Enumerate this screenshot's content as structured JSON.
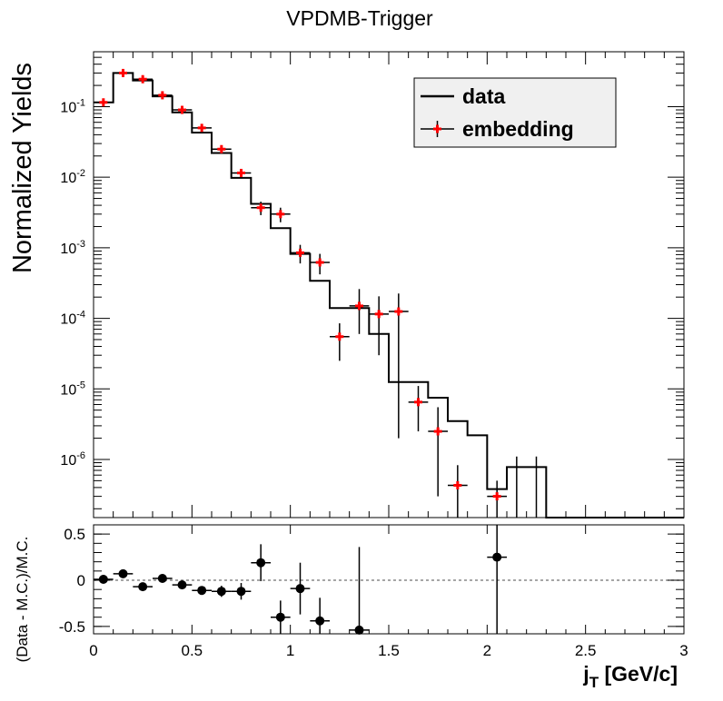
{
  "title": "VPDMB-Trigger",
  "chart_data": [
    {
      "type": "line",
      "panel": "main",
      "ylabel": "Normalized Yields",
      "yscale": "log",
      "xlim": [
        0,
        3
      ],
      "ylim": [
        1.5e-07,
        0.6
      ],
      "y_ticks": [
        {
          "value": 0.1,
          "base": "10",
          "exp": "-1"
        },
        {
          "value": 0.01,
          "base": "10",
          "exp": "-2"
        },
        {
          "value": 0.001,
          "base": "10",
          "exp": "-3"
        },
        {
          "value": 0.0001,
          "base": "10",
          "exp": "-4"
        },
        {
          "value": 1e-05,
          "base": "10",
          "exp": "-5"
        },
        {
          "value": 1e-06,
          "base": "10",
          "exp": "-6"
        }
      ],
      "legend": {
        "placement": "top-right",
        "entries": [
          {
            "label": "data",
            "style": "histogram-step",
            "color": "#000000"
          },
          {
            "label": "embedding",
            "style": "markers-errorbars",
            "color": "#ff0000"
          }
        ]
      },
      "series": [
        {
          "name": "data",
          "style": "step",
          "color": "#000000",
          "bin_edges": [
            0,
            0.1,
            0.2,
            0.3,
            0.4,
            0.5,
            0.6,
            0.7,
            0.8,
            0.9,
            1.0,
            1.1,
            1.2,
            1.3,
            1.4,
            1.5,
            1.6,
            1.7,
            1.8,
            1.9,
            2.0,
            2.1,
            2.2,
            2.3,
            2.4,
            2.5,
            2.6,
            2.7,
            2.8,
            2.9,
            3.0
          ],
          "values": [
            0.115,
            0.3,
            0.235,
            0.14,
            0.083,
            0.043,
            0.022,
            0.0098,
            0.0042,
            0.0019,
            0.00082,
            0.00034,
            0.00014,
            0.00014,
            6e-05,
            1.25e-05,
            1.25e-05,
            7.5e-06,
            3.5e-06,
            2.2e-06,
            3.8e-07,
            7.8e-07,
            7.8e-07,
            0,
            0,
            0,
            0,
            0,
            0,
            0
          ]
        },
        {
          "name": "embedding",
          "style": "markers",
          "color": "#ff0000",
          "x": [
            0.05,
            0.15,
            0.25,
            0.35,
            0.45,
            0.55,
            0.65,
            0.75,
            0.85,
            0.95,
            1.05,
            1.15,
            1.25,
            1.35,
            1.45,
            1.55,
            1.65,
            1.75,
            1.85,
            2.05,
            2.15,
            2.25
          ],
          "y": [
            0.115,
            0.3,
            0.245,
            0.145,
            0.09,
            0.05,
            0.025,
            0.0115,
            0.0037,
            0.003,
            0.00085,
            0.00062,
            5.5e-05,
            0.00015,
            0.000115,
            0.000125,
            6.5e-06,
            2.5e-06,
            4.3e-07,
            3e-07,
            null,
            null
          ],
          "y_err_low": [
            0.008,
            0.015,
            0.012,
            0.008,
            0.006,
            0.004,
            0.002,
            0.001,
            0.0008,
            0.0007,
            0.00025,
            0.0002,
            3e-05,
            9e-05,
            8.5e-05,
            0.000123,
            4e-06,
            2.2e-06,
            3e-07,
            2e-07,
            0,
            0
          ],
          "y_err_high": [
            0.008,
            0.015,
            0.012,
            0.008,
            0.006,
            0.004,
            0.002,
            0.001,
            0.0008,
            0.0007,
            0.00025,
            0.0002,
            3e-05,
            0.00011,
            9e-05,
            0.0001,
            4.5e-06,
            3e-06,
            4e-07,
            2e-07,
            1.1e-06,
            1.1e-06
          ]
        }
      ]
    },
    {
      "type": "scatter",
      "panel": "ratio",
      "xlabel_main": "j",
      "xlabel_sub": "T",
      "xlabel_unit": " [GeV/c]",
      "ylabel": "(Data - M.C.)/M.C.",
      "xlim": [
        0,
        3
      ],
      "ylim": [
        -0.58,
        0.6
      ],
      "x_ticks": [
        {
          "value": 0,
          "label": "0"
        },
        {
          "value": 0.5,
          "label": "0.5"
        },
        {
          "value": 1,
          "label": "1"
        },
        {
          "value": 1.5,
          "label": "1.5"
        },
        {
          "value": 2,
          "label": "2"
        },
        {
          "value": 2.5,
          "label": "2.5"
        },
        {
          "value": 3,
          "label": "3"
        }
      ],
      "y_ticks": [
        {
          "value": 0.5,
          "label": "0.5"
        },
        {
          "value": 0,
          "label": "0"
        },
        {
          "value": -0.5,
          "label": "-0.5"
        }
      ],
      "reference_line": 0,
      "series": [
        {
          "name": "",
          "color": "#000000",
          "x": [
            0.05,
            0.15,
            0.25,
            0.35,
            0.45,
            0.55,
            0.65,
            0.75,
            0.85,
            0.95,
            1.05,
            1.15,
            1.35,
            2.05
          ],
          "y": [
            0.01,
            0.07,
            -0.07,
            0.02,
            -0.05,
            -0.11,
            -0.12,
            -0.12,
            0.19,
            -0.4,
            -0.09,
            -0.44,
            -0.54,
            0.25
          ],
          "y_err": [
            0.02,
            0.02,
            0.03,
            0.03,
            0.04,
            0.04,
            0.06,
            0.09,
            0.2,
            0.18,
            0.28,
            0.25,
            0.9,
            1.0
          ]
        }
      ]
    }
  ]
}
